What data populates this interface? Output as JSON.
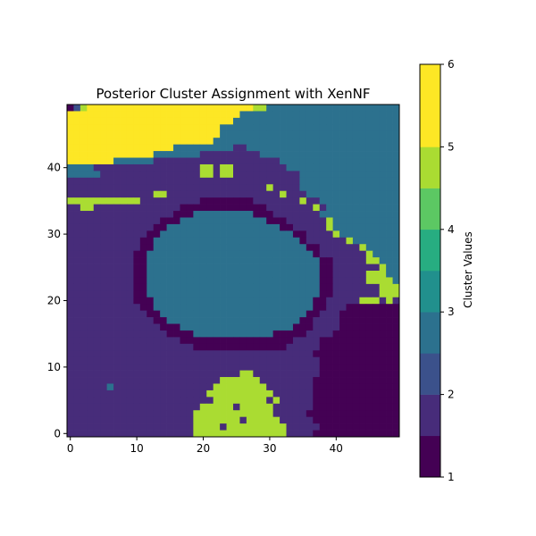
{
  "chart_data": {
    "type": "heatmap",
    "title": "Posterior Cluster Assignment with XenNF",
    "xlabel": "",
    "ylabel": "",
    "xlim": [
      -0.5,
      49.5
    ],
    "ylim": [
      -0.5,
      49.5
    ],
    "x_ticks": [
      0,
      10,
      20,
      30,
      40
    ],
    "y_ticks": [
      0,
      10,
      20,
      30,
      40
    ],
    "colormap": "viridis",
    "colorbar": {
      "label": "Cluster Values",
      "ticks": [
        1,
        2,
        3,
        4,
        5,
        6
      ],
      "levels": [
        {
          "range": [
            1.0,
            1.5
          ],
          "color": "#440154"
        },
        {
          "range": [
            1.5,
            2.0
          ],
          "color": "#472c7a"
        },
        {
          "range": [
            2.0,
            2.5
          ],
          "color": "#3b518b"
        },
        {
          "range": [
            2.5,
            3.0
          ],
          "color": "#2c718e"
        },
        {
          "range": [
            3.0,
            3.5
          ],
          "color": "#21908d"
        },
        {
          "range": [
            3.5,
            4.0
          ],
          "color": "#27ad81"
        },
        {
          "range": [
            4.0,
            4.5
          ],
          "color": "#5cc863"
        },
        {
          "range": [
            4.5,
            5.0
          ],
          "color": "#aadc32"
        },
        {
          "range": [
            5.0,
            6.0
          ],
          "color": "#fde725"
        }
      ]
    },
    "grid_rows_top_to_bottom": [
      "10A6666666666666666666666666AA33333333333333333333",
      "666666666666666666666666663333333333333333333333333",
      "66666666666666666666666663333333333333333333333333",
      "66666666666666666666666333333333333333333333333333",
      "66666666666666666666666333333333333333333333333333",
      "66666666666666666666663333333333333333333333333333",
      "66666666666666663333333332233333333333333333333333",
      "66666666666663333333222222222333333333333333333333",
      "66666663333332222222222222222222333333333333333333",
      "33332222222222222222AA2AA2222222233333333333333333",
      "33333222222222222222AA2AA22222222223333333333333333",
      "22222222222222222222222222222222222333333333333333",
      "222222222222222222222222222222A22223333333333333333",
      "2222222222222AA22222222222222222A2223333333333333333",
      "AAAAAAAAAAA222222222111111112222222A223333333333333",
      "22AA222222222222211111111111112222222A233333333333",
      "222222222222222211133333333311122222223333333333333",
      "222222222222221113333333333333111222222A33333333333",
      "222222222222211333333333333333331122222A3333333333",
      "2222222222221133333333333333333333112222A3333333333",
      "222222222221133333333333333333333331222222A333333333",
      "22222222222113333333333333333333333311222222A33333333",
      "222222222211333333333333333333333333312222222A3333333",
      "222222222211333333333333333333333333331122222AA333333",
      "22222222221133333333333333333333333333112222222A3333",
      "222222222211333333333333333333333333331122222AAA333",
      "222222222211333333333333333333333333331122222AAAA33",
      "22222222221133333333333333333333333333112222222AAAA",
      "22222222221133333333333333333333333333112222222AAAA",
      "22222222221113333333333333333333333331122222AAA2A2A",
      "222222222221133333333333333333333333311222111111111",
      "22222222222211333333333333333333333311222111111111",
      "222222222222211333333333333333333331122221111111111",
      "2222222222222211133333333333333333111222211111111111",
      "222222222222222111133333333333311111222211111111111",
      "22222222222222222111111111111111112222111111111111",
      "222222222222222222211111111111111222221111111111111",
      "2222222222222222222222222222222222222111111111111111",
      "22222222222222222222222222222222222222111111111111111",
      "222222222222222222222222222222222222221111111111111",
      "22222222222222222222222222AA2222222222111111111111",
      "22222222222222222222222AAAAAA22222222111111111111",
      "2222223222222222222222AAAAAAAA222222211111111111",
      "222222222222222222222AAAAAAAAAA22222211111111111",
      "2222222222222222222222AAAAAAAA2A222221111111111",
      "22222222222222222222AAAAA2AAAAA22222211111111111",
      "2222222222222222222AAAAAAAAAAAA222221111111111111",
      "2222222222222222222AAAAAAA2AAAAA22222111111111111",
      "2222222222222222222AAAA2AAAAAAAAA222221111111111111",
      "2222222222222222222AAAAAAAAAAAAAA22221111111111111"
    ]
  }
}
